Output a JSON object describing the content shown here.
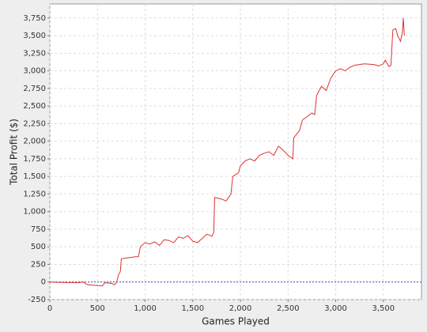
{
  "chart_data": {
    "type": "line",
    "x_label": "Games Played",
    "y_label": "Total Profit ($)",
    "color": "#e03030",
    "grid": true,
    "zero_line_color": "#4444cc",
    "x": [
      0,
      100,
      300,
      350,
      370,
      400,
      500,
      550,
      580,
      620,
      650,
      680,
      700,
      720,
      740,
      750,
      800,
      850,
      900,
      930,
      950,
      1000,
      1050,
      1100,
      1150,
      1200,
      1250,
      1300,
      1350,
      1400,
      1450,
      1500,
      1550,
      1600,
      1650,
      1700,
      1720,
      1730,
      1800,
      1850,
      1900,
      1920,
      1980,
      2000,
      2050,
      2100,
      2150,
      2200,
      2250,
      2300,
      2350,
      2400,
      2450,
      2500,
      2550,
      2560,
      2620,
      2650,
      2700,
      2750,
      2780,
      2800,
      2850,
      2900,
      2950,
      3000,
      3050,
      3100,
      3150,
      3200,
      3300,
      3400,
      3450,
      3500,
      3520,
      3560,
      3580,
      3600,
      3630,
      3650,
      3680,
      3700,
      3710,
      3720
    ],
    "values": [
      0,
      -5,
      -10,
      0,
      -20,
      -40,
      -50,
      -55,
      -10,
      -15,
      -20,
      -40,
      -5,
      100,
      150,
      330,
      340,
      350,
      360,
      360,
      500,
      560,
      540,
      570,
      520,
      600,
      590,
      560,
      640,
      620,
      660,
      580,
      560,
      620,
      680,
      650,
      700,
      1200,
      1180,
      1150,
      1250,
      1500,
      1550,
      1650,
      1720,
      1750,
      1720,
      1800,
      1830,
      1850,
      1800,
      1930,
      1870,
      1800,
      1750,
      2050,
      2150,
      2300,
      2350,
      2400,
      2380,
      2650,
      2780,
      2720,
      2900,
      3000,
      3030,
      3000,
      3050,
      3080,
      3100,
      3090,
      3070,
      3100,
      3150,
      3060,
      3080,
      3580,
      3600,
      3500,
      3420,
      3550,
      3750,
      3500
    ],
    "xlim": [
      0,
      3900
    ],
    "ylim": [
      -250,
      3950
    ],
    "xticks": [
      0,
      500,
      {
        "value": 1000,
        "label": "1,000"
      },
      {
        "value": 1500,
        "label": "1,500"
      },
      {
        "value": 2000,
        "label": "2,000"
      },
      {
        "value": 2500,
        "label": "2,500"
      },
      {
        "value": 3000,
        "label": "3,000"
      },
      {
        "value": 3500,
        "label": "3,500"
      }
    ],
    "yticks": [
      -250,
      0,
      250,
      500,
      750,
      {
        "value": 1000,
        "label": "1,000"
      },
      {
        "value": 1250,
        "label": "1,250"
      },
      {
        "value": 1500,
        "label": "1,500"
      },
      {
        "value": 1750,
        "label": "1,750"
      },
      {
        "value": 2000,
        "label": "2,000"
      },
      {
        "value": 2250,
        "label": "2,250"
      },
      {
        "value": 2500,
        "label": "2,500"
      },
      {
        "value": 2750,
        "label": "2,750"
      },
      {
        "value": 3000,
        "label": "3,000"
      },
      {
        "value": 3250,
        "label": "3,250"
      },
      {
        "value": 3500,
        "label": "3,500"
      },
      {
        "value": 3750,
        "label": "3,750"
      }
    ]
  }
}
